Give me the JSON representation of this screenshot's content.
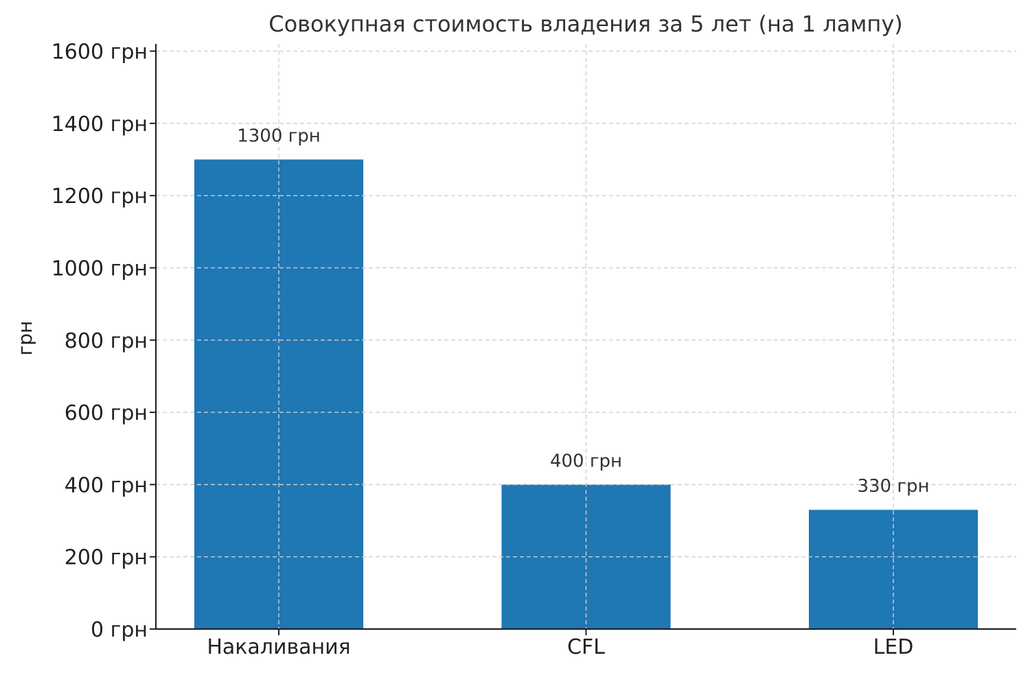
{
  "chart_data": {
    "type": "bar",
    "title": "Совокупная стоимость владения за 5 лет (на 1 лампу)",
    "xlabel": "",
    "ylabel": "грн",
    "categories": [
      "Накаливания",
      "CFL",
      "LED"
    ],
    "values": [
      1300,
      400,
      330
    ],
    "value_labels": [
      "1300 грн",
      "400 грн",
      "330 грн"
    ],
    "ylim": [
      0,
      1620
    ],
    "yticks": [
      0,
      200,
      400,
      600,
      800,
      1000,
      1200,
      1400,
      1600
    ],
    "ytick_labels": [
      "0 грн",
      "200 грн",
      "400 грн",
      "600 грн",
      "800 грн",
      "1000 грн",
      "1200 грн",
      "1400 грн",
      "1600 грн"
    ],
    "bar_color": "#1f77b4",
    "grid": true,
    "legend": false
  }
}
